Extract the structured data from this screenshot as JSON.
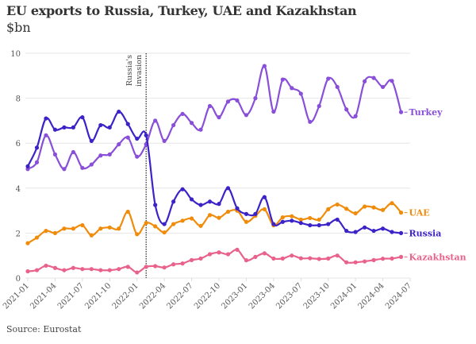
{
  "title": "EU exports to Russia, Turkey, UAE and Kazakhstan",
  "subtitle": "$bn",
  "source": "Source: Eurostat",
  "chart_data": {
    "type": "line",
    "title": "EU exports to Russia, Turkey, UAE and Kazakhstan",
    "ylabel": "$bn",
    "ylim": [
      0,
      10
    ],
    "yticks": [
      0,
      2,
      4,
      6,
      8,
      10
    ],
    "xstart": "2021-01",
    "xlim": [
      "2021-01",
      "2024-07"
    ],
    "xticks": [
      "2021-01",
      "2021-04",
      "2021-07",
      "2021-10",
      "2022-01",
      "2022-04",
      "2022-07",
      "2022-10",
      "2023-01",
      "2023-04",
      "2023-07",
      "2023-10",
      "2024-01",
      "2024-04",
      "2024-07"
    ],
    "grid": "horizontal",
    "legend": "direct labels at line ends",
    "annotation": {
      "x": "2022-02",
      "text_lines": [
        "Russia's",
        "invasion"
      ]
    },
    "series": [
      {
        "name": "Turkey",
        "color": "#8a4fd8",
        "values": [
          4.85,
          5.15,
          6.35,
          5.5,
          4.85,
          5.6,
          4.9,
          5.05,
          5.45,
          5.5,
          5.95,
          6.25,
          5.4,
          5.95,
          7.0,
          6.1,
          6.8,
          7.3,
          6.9,
          6.6,
          7.65,
          7.15,
          7.85,
          7.9,
          7.25,
          8.0,
          9.43,
          7.4,
          8.83,
          8.45,
          8.2,
          6.95,
          7.65,
          8.87,
          8.5,
          7.5,
          7.2,
          8.75,
          8.9,
          8.5,
          8.77,
          7.38
        ]
      },
      {
        "name": "UAE",
        "color": "#f08c0c",
        "values": [
          1.55,
          1.8,
          2.1,
          2.0,
          2.2,
          2.2,
          2.35,
          1.9,
          2.2,
          2.25,
          2.2,
          2.95,
          1.95,
          2.45,
          2.3,
          2.03,
          2.4,
          2.55,
          2.65,
          2.32,
          2.8,
          2.68,
          2.95,
          3.0,
          2.5,
          2.77,
          3.06,
          2.35,
          2.7,
          2.75,
          2.6,
          2.67,
          2.6,
          3.06,
          3.27,
          3.08,
          2.88,
          3.18,
          3.14,
          3.03,
          3.33,
          2.91
        ]
      },
      {
        "name": "Russia",
        "color": "#3c23c8",
        "values": [
          4.97,
          5.8,
          7.1,
          6.6,
          6.7,
          6.7,
          7.15,
          6.1,
          6.8,
          6.7,
          7.4,
          6.85,
          6.2,
          6.35,
          3.25,
          2.4,
          3.4,
          3.95,
          3.5,
          3.25,
          3.4,
          3.3,
          4.0,
          3.1,
          2.85,
          2.85,
          3.6,
          2.4,
          2.5,
          2.55,
          2.45,
          2.35,
          2.35,
          2.4,
          2.6,
          2.1,
          2.05,
          2.25,
          2.1,
          2.2,
          2.05,
          2.0
        ]
      },
      {
        "name": "Kazakhstan",
        "color": "#e8628c",
        "values": [
          0.3,
          0.35,
          0.55,
          0.45,
          0.35,
          0.45,
          0.4,
          0.4,
          0.35,
          0.35,
          0.4,
          0.5,
          0.25,
          0.5,
          0.53,
          0.47,
          0.61,
          0.65,
          0.8,
          0.87,
          1.06,
          1.14,
          1.06,
          1.26,
          0.79,
          0.94,
          1.1,
          0.87,
          0.87,
          1.0,
          0.88,
          0.88,
          0.85,
          0.87,
          1.0,
          0.7,
          0.7,
          0.74,
          0.8,
          0.86,
          0.87,
          0.94
        ]
      }
    ]
  }
}
